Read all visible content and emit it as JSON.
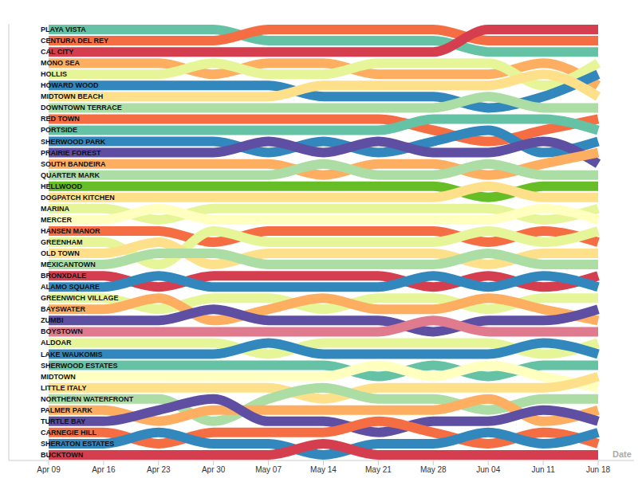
{
  "chart_data": {
    "type": "bump",
    "xlabel": "Date",
    "tick_labels": "x",
    "categories": [
      "Apr 09",
      "Apr 16",
      "Apr 23",
      "Apr 30",
      "May 07",
      "May 14",
      "May 21",
      "May 28",
      "Jun 04",
      "Jun 11",
      "Jun 18"
    ],
    "ylim": [
      39.5,
      0.5
    ],
    "series": [
      {
        "name": "PLAYA VISTA",
        "color": "#66c2a5",
        "values": [
          1,
          1,
          1,
          1,
          2,
          2,
          2,
          2,
          3,
          3,
          3
        ]
      },
      {
        "name": "CENTURA DEL REY",
        "color": "#f46d43",
        "values": [
          2,
          2,
          2,
          2,
          1,
          1,
          1,
          1,
          2,
          2,
          2
        ]
      },
      {
        "name": "CAL CITY",
        "color": "#d53e4f",
        "values": [
          3,
          3,
          3,
          3,
          3,
          3,
          3,
          3,
          1,
          1,
          1
        ]
      },
      {
        "name": "MONO SEA",
        "color": "#fdae61",
        "values": [
          4,
          4,
          4,
          5,
          4,
          4,
          5,
          5,
          5,
          4,
          6
        ]
      },
      {
        "name": "HOLLIS",
        "color": "#e6f598",
        "values": [
          5,
          5,
          5,
          4,
          5,
          5,
          4,
          4,
          4,
          6,
          4
        ]
      },
      {
        "name": "HOWARD WOOD",
        "color": "#3288bd",
        "values": [
          6,
          6,
          6,
          6,
          6,
          7,
          7,
          7,
          8,
          7,
          5
        ]
      },
      {
        "name": "MIDTOWN BEACH",
        "color": "#fee08b",
        "values": [
          7,
          7,
          7,
          7,
          7,
          6,
          6,
          6,
          6,
          5,
          7
        ]
      },
      {
        "name": "DOWNTOWN TERRACE",
        "color": "#abdda4",
        "values": [
          8,
          8,
          8,
          8,
          8,
          8,
          8,
          8,
          7,
          8,
          8
        ]
      },
      {
        "name": "RED TOWN",
        "color": "#f46d43",
        "values": [
          9,
          9,
          9,
          9,
          9,
          9,
          9,
          10,
          11,
          10,
          9
        ]
      },
      {
        "name": "PORTSIDE",
        "color": "#66c2a5",
        "values": [
          10,
          10,
          10,
          10,
          10,
          10,
          10,
          9,
          9,
          9,
          10
        ]
      },
      {
        "name": "SHERWOOD PARK",
        "color": "#3288bd",
        "values": [
          11,
          11,
          11,
          11,
          12,
          11,
          12,
          11,
          10,
          12,
          11
        ]
      },
      {
        "name": "PRAIRIE FOREST",
        "color": "#5e4fa2",
        "values": [
          12,
          12,
          12,
          12,
          11,
          12,
          11,
          12,
          12,
          11,
          13
        ]
      },
      {
        "name": "SOUTH BANDEIRA",
        "color": "#fdae61",
        "values": [
          13,
          13,
          13,
          13,
          13,
          14,
          13,
          13,
          14,
          13,
          12
        ]
      },
      {
        "name": "QUARTER MARK",
        "color": "#abdda4",
        "values": [
          14,
          14,
          14,
          14,
          14,
          13,
          14,
          14,
          13,
          14,
          14
        ]
      },
      {
        "name": "HELLWOOD",
        "color": "#66bd25",
        "values": [
          15,
          15,
          15,
          15,
          15,
          15,
          15,
          15,
          16,
          15,
          15
        ]
      },
      {
        "name": "DOGPATCH KITCHEN",
        "color": "#fee08b",
        "values": [
          16,
          16,
          16,
          16,
          16,
          16,
          16,
          16,
          15,
          16,
          16
        ]
      },
      {
        "name": "MARINA",
        "color": "#e6f598",
        "values": [
          17,
          17,
          18,
          17,
          17,
          17,
          17,
          17,
          17,
          18,
          17
        ]
      },
      {
        "name": "MERCER",
        "color": "#ffffbf",
        "values": [
          18,
          18,
          17,
          18,
          18,
          18,
          18,
          18,
          18,
          17,
          18
        ]
      },
      {
        "name": "HANSEN MANOR",
        "color": "#f46d43",
        "values": [
          19,
          19,
          19,
          20,
          19,
          19,
          19,
          19,
          20,
          19,
          20
        ]
      },
      {
        "name": "GREENHAM",
        "color": "#e6f598",
        "values": [
          20,
          20,
          22,
          19,
          20,
          20,
          20,
          20,
          19,
          20,
          19
        ]
      },
      {
        "name": "OLD TOWN",
        "color": "#fee08b",
        "values": [
          21,
          21,
          20,
          22,
          21,
          21,
          21,
          21,
          22,
          21,
          21
        ]
      },
      {
        "name": "MEXICANTOWN",
        "color": "#abdda4",
        "values": [
          22,
          22,
          21,
          21,
          22,
          22,
          22,
          22,
          21,
          22,
          22
        ]
      },
      {
        "name": "BRONXDALE",
        "color": "#d53e4f",
        "values": [
          23,
          23,
          24,
          23,
          23,
          23,
          23,
          24,
          23,
          24,
          23
        ]
      },
      {
        "name": "ALAMO SQUARE",
        "color": "#3288bd",
        "values": [
          24,
          24,
          23,
          24,
          24,
          24,
          24,
          23,
          24,
          23,
          24
        ]
      },
      {
        "name": "GREENWICH VILLAGE",
        "color": "#e6f598",
        "values": [
          25,
          25,
          26,
          25,
          25,
          26,
          25,
          25,
          26,
          25,
          25
        ]
      },
      {
        "name": "BAYSWATER",
        "color": "#fdae61",
        "values": [
          26,
          26,
          25,
          27,
          26,
          25,
          26,
          26,
          25,
          26,
          27
        ]
      },
      {
        "name": "ZUMBI",
        "color": "#5e4fa2",
        "values": [
          27,
          27,
          27,
          26,
          27,
          27,
          27,
          28,
          27,
          27,
          26
        ]
      },
      {
        "name": "BOYSTOWN",
        "color": "#e07a8f",
        "values": [
          28,
          28,
          28,
          28,
          28,
          28,
          28,
          27,
          28,
          28,
          28
        ]
      },
      {
        "name": "ALDOAR",
        "color": "#e6f598",
        "values": [
          29,
          29,
          29,
          29,
          30,
          29,
          29,
          29,
          29,
          30,
          29
        ]
      },
      {
        "name": "LAKE WAUKOMIS",
        "color": "#3288bd",
        "values": [
          30,
          30,
          30,
          30,
          29,
          30,
          30,
          30,
          30,
          29,
          30
        ]
      },
      {
        "name": "SHERWOOD ESTATES",
        "color": "#66c2a5",
        "values": [
          31,
          31,
          31,
          31,
          31,
          31,
          32,
          31,
          32,
          31,
          31
        ]
      },
      {
        "name": "MIDTOWN",
        "color": "#ffffbf",
        "values": [
          32,
          32,
          32,
          32,
          32,
          32,
          31,
          32,
          31,
          32,
          33
        ]
      },
      {
        "name": "LITTLE ITALY",
        "color": "#fee08b",
        "values": [
          33,
          33,
          33,
          33,
          33,
          34,
          33,
          33,
          33,
          33,
          32
        ]
      },
      {
        "name": "NORTHERN WATERFRONT",
        "color": "#abdda4",
        "values": [
          34,
          34,
          34,
          36,
          34,
          33,
          34,
          34,
          35,
          34,
          34
        ]
      },
      {
        "name": "PALMER PARK",
        "color": "#fdae61",
        "values": [
          35,
          35,
          36,
          35,
          35,
          35,
          35,
          35,
          34,
          36,
          35
        ]
      },
      {
        "name": "TURTLE BAY",
        "color": "#5e4fa2",
        "values": [
          36,
          36,
          35,
          34,
          36,
          36,
          37,
          36,
          36,
          35,
          36
        ]
      },
      {
        "name": "CARNEGIE HILL",
        "color": "#f46d43",
        "values": [
          37,
          37,
          38,
          37,
          37,
          37,
          36,
          37,
          38,
          37,
          38
        ]
      },
      {
        "name": "SHERATON ESTATES",
        "color": "#3288bd",
        "values": [
          38,
          38,
          37,
          38,
          38,
          39,
          38,
          38,
          37,
          38,
          37
        ]
      },
      {
        "name": "BUCKTOWN",
        "color": "#d53e4f",
        "values": [
          39,
          39,
          39,
          39,
          39,
          38,
          39,
          39,
          39,
          39,
          39
        ]
      }
    ]
  }
}
